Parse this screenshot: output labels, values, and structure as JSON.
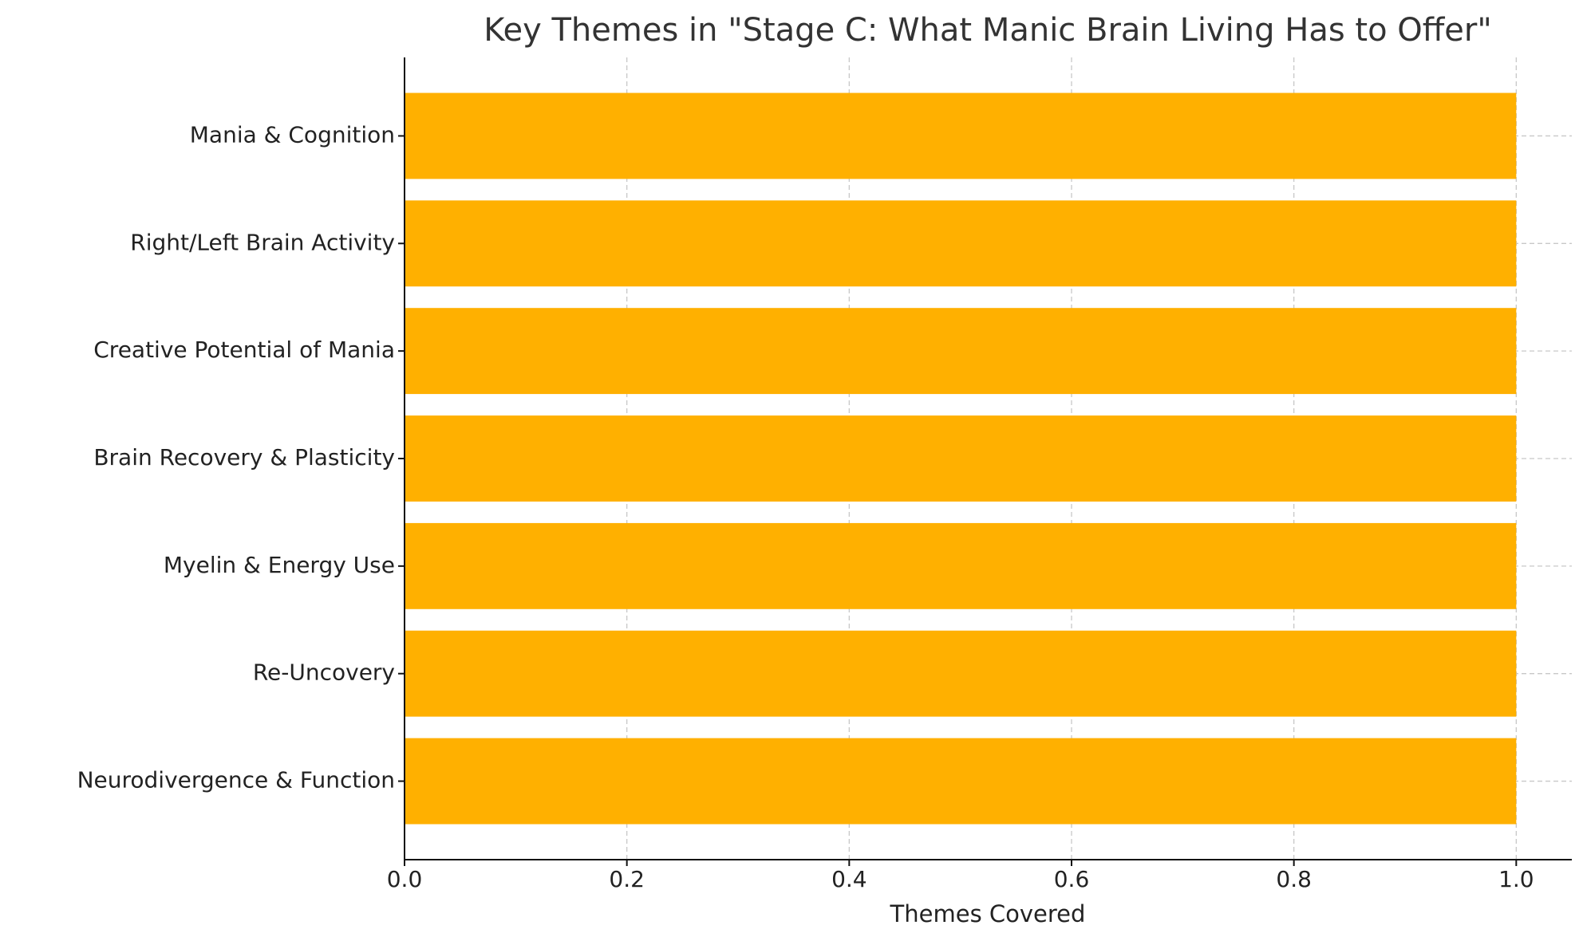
{
  "chart_data": {
    "type": "barh",
    "title": "Key Themes in \"Stage C: What Manic Brain Living Has to Offer\"",
    "x_label": "Themes Covered",
    "categories": [
      "Mania & Cognition",
      "Right/Left Brain Activity",
      "Creative Potential of Mania",
      "Brain Recovery & Plasticity",
      "Myelin & Energy Use",
      "Re-Uncovery",
      "Neurodivergence & Function"
    ],
    "values": [
      1,
      1,
      1,
      1,
      1,
      1,
      1
    ],
    "color": "#ffb000",
    "xlim": [
      0,
      1.05
    ],
    "xticks": [
      {
        "value": 0,
        "label": "0.0"
      },
      {
        "value": 0.2,
        "label": "0.2"
      },
      {
        "value": 0.4,
        "label": "0.4"
      },
      {
        "value": 0.6,
        "label": "0.6"
      },
      {
        "value": 0.8,
        "label": "0.8"
      },
      {
        "value": 1,
        "label": "1.0"
      }
    ],
    "grid": true
  }
}
